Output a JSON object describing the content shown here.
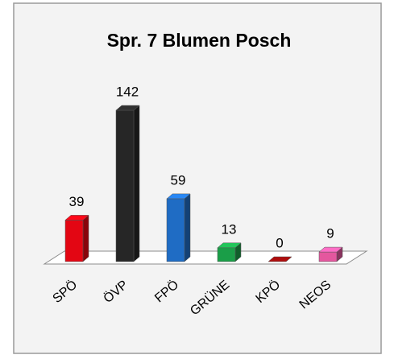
{
  "chart_data": {
    "type": "bar3d",
    "title": "Spr. 7 Blumen Posch",
    "categories": [
      "SPÖ",
      "ÖVP",
      "FPÖ",
      "GRÜNE",
      "KPÖ",
      "NEOS"
    ],
    "values": [
      39,
      142,
      59,
      13,
      0,
      9
    ],
    "colors": [
      "#e30613",
      "#262626",
      "#1f6cc4",
      "#1a9e48",
      "#8b0a0a",
      "#e4579e"
    ]
  }
}
